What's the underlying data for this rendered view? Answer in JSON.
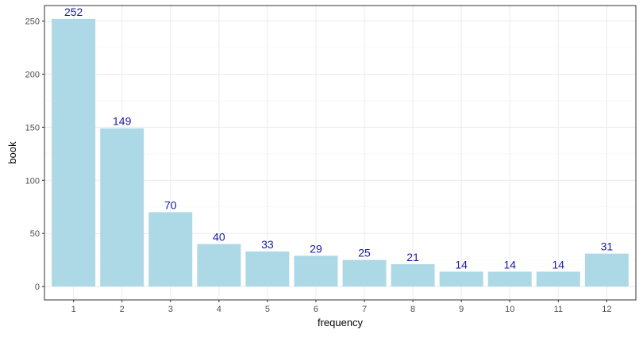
{
  "chart_data": {
    "type": "bar",
    "title": "",
    "xlabel": "frequency",
    "ylabel": "book",
    "categories": [
      "1",
      "2",
      "3",
      "4",
      "5",
      "6",
      "7",
      "8",
      "9",
      "10",
      "11",
      "12"
    ],
    "values": [
      252,
      149,
      70,
      40,
      33,
      29,
      25,
      21,
      14,
      14,
      14,
      31
    ],
    "data_labels": [
      "252",
      "149",
      "70",
      "40",
      "33",
      "29",
      "25",
      "21",
      "14",
      "14",
      "14",
      "31"
    ],
    "y_ticks": [
      0,
      50,
      100,
      150,
      200,
      250
    ],
    "y_tick_labels": [
      "0",
      "50",
      "100",
      "150",
      "200",
      "250"
    ],
    "ylim": [
      -12.6,
      264.6
    ],
    "grid": true,
    "legend": "none",
    "colors": {
      "bar": "#add8e6",
      "label": "#1a1aa6",
      "grid_major": "#ebebeb",
      "grid_minor": "#f5f5f5",
      "panel_border": "#333333"
    }
  }
}
